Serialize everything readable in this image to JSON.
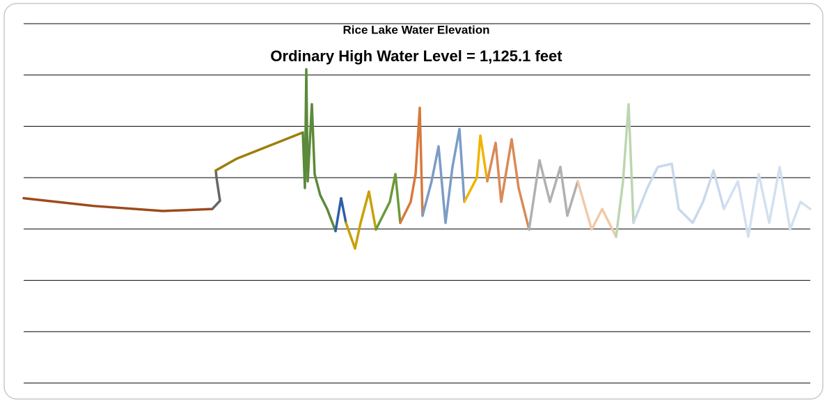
{
  "chart_data": {
    "type": "line",
    "title": "Rice Lake Water Elevation",
    "subtitle": "Ordinary High Water Level = 1,125.1 feet",
    "xlim": [
      0,
      113
    ],
    "ylim": [
      0,
      7
    ],
    "gridlines": [
      0,
      1,
      2,
      3,
      4,
      5,
      6,
      7
    ],
    "series": [
      {
        "color": "#9e4a1c",
        "x": [
          0,
          10,
          20,
          27.1
        ],
        "values": [
          3.6,
          3.45,
          3.35,
          3.39
        ]
      },
      {
        "color": "#666666",
        "x": [
          27.1,
          28.2,
          27.7,
          27.6
        ],
        "values": [
          3.39,
          3.55,
          4.0,
          4.14
        ]
      },
      {
        "color": "#9c7e0a",
        "x": [
          27.6,
          30.6,
          40.1
        ],
        "values": [
          4.14,
          4.37,
          4.88
        ]
      },
      {
        "color": "#5b8a3a",
        "x": [
          40.1,
          40.4,
          40.6,
          40.8,
          41.4,
          41.8,
          42.6,
          43.6,
          44.8
        ],
        "values": [
          4.88,
          3.8,
          6.11,
          3.93,
          5.43,
          4.07,
          3.66,
          3.39,
          2.96
        ]
      },
      {
        "color": "#2e5ea8",
        "x": [
          44.8,
          45.6,
          46.3
        ],
        "values": [
          2.96,
          3.6,
          3.12
        ]
      },
      {
        "color": "#c9a000",
        "x": [
          46.3,
          47.6,
          48.4,
          49.6,
          50.6
        ],
        "values": [
          3.12,
          2.62,
          3.12,
          3.73,
          2.99
        ]
      },
      {
        "color": "#6a9a3c",
        "x": [
          50.6,
          52.6,
          53.4,
          54.1
        ],
        "values": [
          2.99,
          3.53,
          4.07,
          3.12
        ]
      },
      {
        "color": "#d77a3c",
        "x": [
          54.1,
          55.6,
          56.3,
          56.9,
          57.3
        ],
        "values": [
          3.12,
          3.53,
          4.07,
          5.36,
          3.26
        ]
      },
      {
        "color": "#7a9cc6",
        "x": [
          57.3,
          58.6,
          59.6,
          60.6,
          61.6,
          62.6,
          63.3
        ],
        "values": [
          3.26,
          3.93,
          4.61,
          3.12,
          4.21,
          4.95,
          3.53
        ]
      },
      {
        "color": "#f0b400",
        "x": [
          63.3,
          65.1,
          65.6,
          66.6
        ],
        "values": [
          3.53,
          4.0,
          4.82,
          3.93
        ]
      },
      {
        "color": "#d98a55",
        "x": [
          66.6,
          67.8,
          68.6,
          70.1,
          71.1,
          72.6
        ],
        "values": [
          3.93,
          4.68,
          3.53,
          4.75,
          3.8,
          2.99
        ]
      },
      {
        "color": "#b0b0b0",
        "x": [
          72.6,
          74.1,
          75.6,
          77.1,
          78.1,
          79.6
        ],
        "values": [
          2.99,
          4.34,
          3.53,
          4.21,
          3.26,
          3.93
        ]
      },
      {
        "color": "#f2c9a8",
        "x": [
          79.6,
          81.6,
          83.1,
          85.1
        ],
        "values": [
          3.93,
          2.99,
          3.39,
          2.85
        ]
      },
      {
        "color": "#bcd6b0",
        "x": [
          85.1,
          86.1,
          86.9,
          87.6
        ],
        "values": [
          2.85,
          3.93,
          5.43,
          3.12
        ]
      },
      {
        "color": "#c9d8ec",
        "x": [
          87.6,
          89.6,
          91.1,
          93.1,
          94.1,
          96.1,
          97.6,
          99.1,
          100.6
        ],
        "values": [
          3.12,
          3.8,
          4.21,
          4.27,
          3.39,
          3.12,
          3.53,
          4.14,
          3.39
        ]
      },
      {
        "color": "#d3e0f0",
        "x": [
          100.6,
          102.6,
          104.1,
          105.6,
          107.1,
          108.6,
          110.1,
          111.6,
          113
        ],
        "values": [
          3.39,
          3.93,
          2.85,
          4.07,
          3.12,
          4.21,
          2.99,
          3.53,
          3.39
        ]
      }
    ]
  }
}
